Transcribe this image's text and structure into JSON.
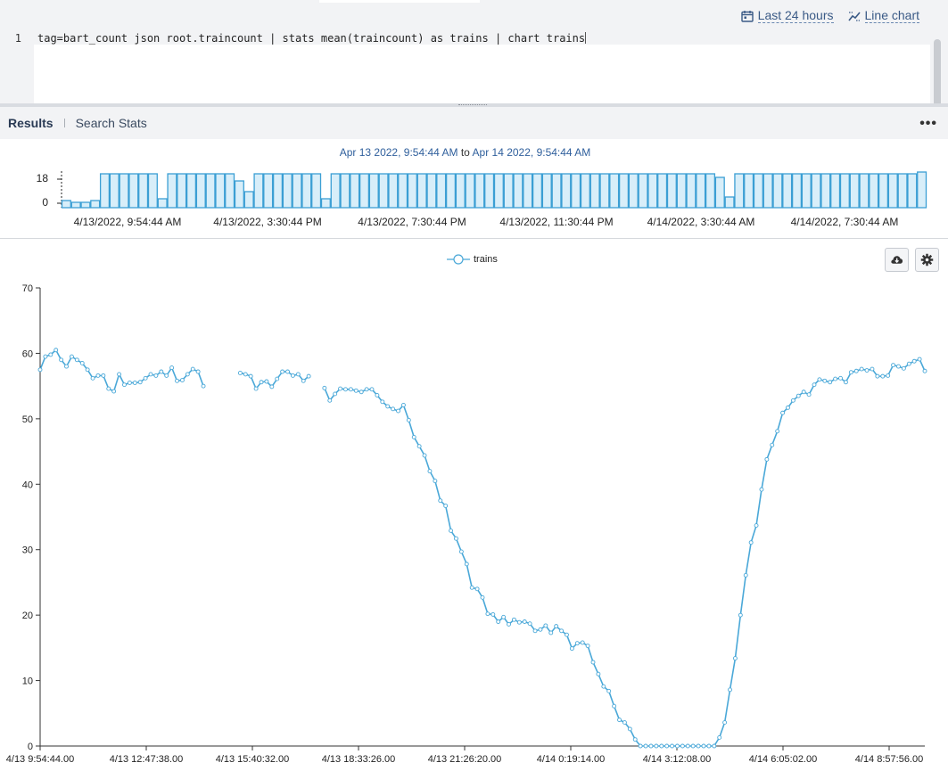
{
  "toolbar": {
    "time_range_label": "Last 24 hours",
    "chart_type_label": "Line chart",
    "time_range_icon": "calendar-icon",
    "chart_type_icon": "line-chart-icon"
  },
  "editor": {
    "line_number": "1",
    "query": "tag=bart_count json root.traincount | stats mean(traincount) as trains | chart trains"
  },
  "tabs": {
    "results": "Results",
    "search_stats": "Search Stats",
    "more": "•••"
  },
  "histogram": {
    "range_start": "Apr 13 2022, 9:54:44 AM",
    "range_to": "to",
    "range_end": "Apr 14 2022, 9:54:44 AM",
    "y_ticks": [
      "18",
      "0"
    ],
    "x_ticks": [
      "4/13/2022, 9:54:44 AM",
      "4/13/2022, 3:30:44 PM",
      "4/13/2022, 7:30:44 PM",
      "4/13/2022, 11:30:44 PM",
      "4/14/2022, 3:30:44 AM",
      "4/14/2022, 7:30:44 AM"
    ],
    "ymax": 20,
    "bar_values": [
      4,
      3,
      3,
      4,
      19,
      19,
      19,
      19,
      19,
      19,
      5,
      19,
      19,
      19,
      19,
      19,
      19,
      19,
      15,
      9,
      19,
      19,
      19,
      19,
      19,
      19,
      19,
      5,
      19,
      19,
      19,
      19,
      19,
      19,
      19,
      19,
      19,
      19,
      19,
      19,
      19,
      19,
      19,
      19,
      19,
      19,
      19,
      19,
      19,
      19,
      19,
      19,
      19,
      19,
      19,
      19,
      19,
      19,
      19,
      19,
      19,
      19,
      19,
      19,
      19,
      19,
      19,
      19,
      17,
      6,
      19,
      19,
      19,
      19,
      19,
      19,
      19,
      19,
      19,
      19,
      19,
      19,
      19,
      19,
      19,
      19,
      19,
      19,
      19,
      20
    ]
  },
  "chart_data": {
    "type": "line",
    "legend": "trains",
    "legend_position": "top-center",
    "ylim": [
      0,
      70
    ],
    "y_ticks": [
      "70",
      "60",
      "50",
      "40",
      "30",
      "20",
      "10",
      "0"
    ],
    "x_ticks": [
      "4/13 9:54:44.00",
      "4/13 12:47:38.00",
      "4/13 15:40:32.00",
      "4/13 18:33:26.00",
      "4/13 21:26:20.00",
      "4/14 0:19:14.00",
      "4/14 3:12:08.00",
      "4/14 6:05:02.00",
      "4/14 8:57:56.00"
    ],
    "series": [
      {
        "name": "trains",
        "color": "#4aa8d8",
        "values": [
          57.5,
          59.5,
          59.8,
          60.5,
          59,
          58,
          59.5,
          59,
          58.5,
          57.5,
          56.2,
          56.6,
          56.6,
          54.6,
          54.2,
          56.8,
          55.2,
          55.5,
          55.5,
          55.6,
          56.2,
          56.8,
          56.6,
          57.2,
          56.6,
          57.8,
          55.8,
          55.9,
          56.8,
          57.6,
          57.2,
          55,
          null,
          null,
          null,
          null,
          null,
          null,
          57,
          56.8,
          56.5,
          54.6,
          55.6,
          55.7,
          54.9,
          56.1,
          57.2,
          57.2,
          56.6,
          56.8,
          55.8,
          56.5,
          null,
          null,
          54.7,
          52.8,
          53.8,
          54.6,
          54.5,
          54.5,
          54.3,
          54.1,
          54.5,
          54.5,
          53.6,
          52.6,
          51.9,
          51.5,
          51.2,
          52.1,
          49.8,
          47.2,
          45.8,
          44.4,
          42,
          40.5,
          37.5,
          36.7,
          32.9,
          31.7,
          29.7,
          27.8,
          24.2,
          24,
          22.7,
          20.2,
          20.1,
          19,
          19.7,
          18.6,
          19.3,
          18.9,
          19,
          18.7,
          17.6,
          17.8,
          18.4,
          17.3,
          18.3,
          17.6,
          17,
          14.9,
          15.7,
          15.8,
          15.3,
          12.8,
          11,
          9.1,
          8.4,
          6.1,
          4,
          3.6,
          2.6,
          1,
          0,
          0,
          0,
          0,
          0,
          0,
          0,
          0,
          0,
          0,
          0,
          0,
          0,
          0,
          0,
          1.3,
          3.6,
          8.6,
          13.4,
          20,
          26.1,
          31.1,
          33.7,
          39.2,
          43.8,
          46,
          48.1,
          50.9,
          51.7,
          52.8,
          53.5,
          54.1,
          53.7,
          55.2,
          56,
          55.8,
          55.6,
          56.1,
          56.2,
          55.6,
          57.1,
          57.3,
          57.6,
          57.4,
          57.6,
          56.5,
          56.5,
          56.6,
          58.2,
          58,
          57.7,
          58.4,
          58.8,
          59.1,
          57.3
        ]
      }
    ]
  }
}
